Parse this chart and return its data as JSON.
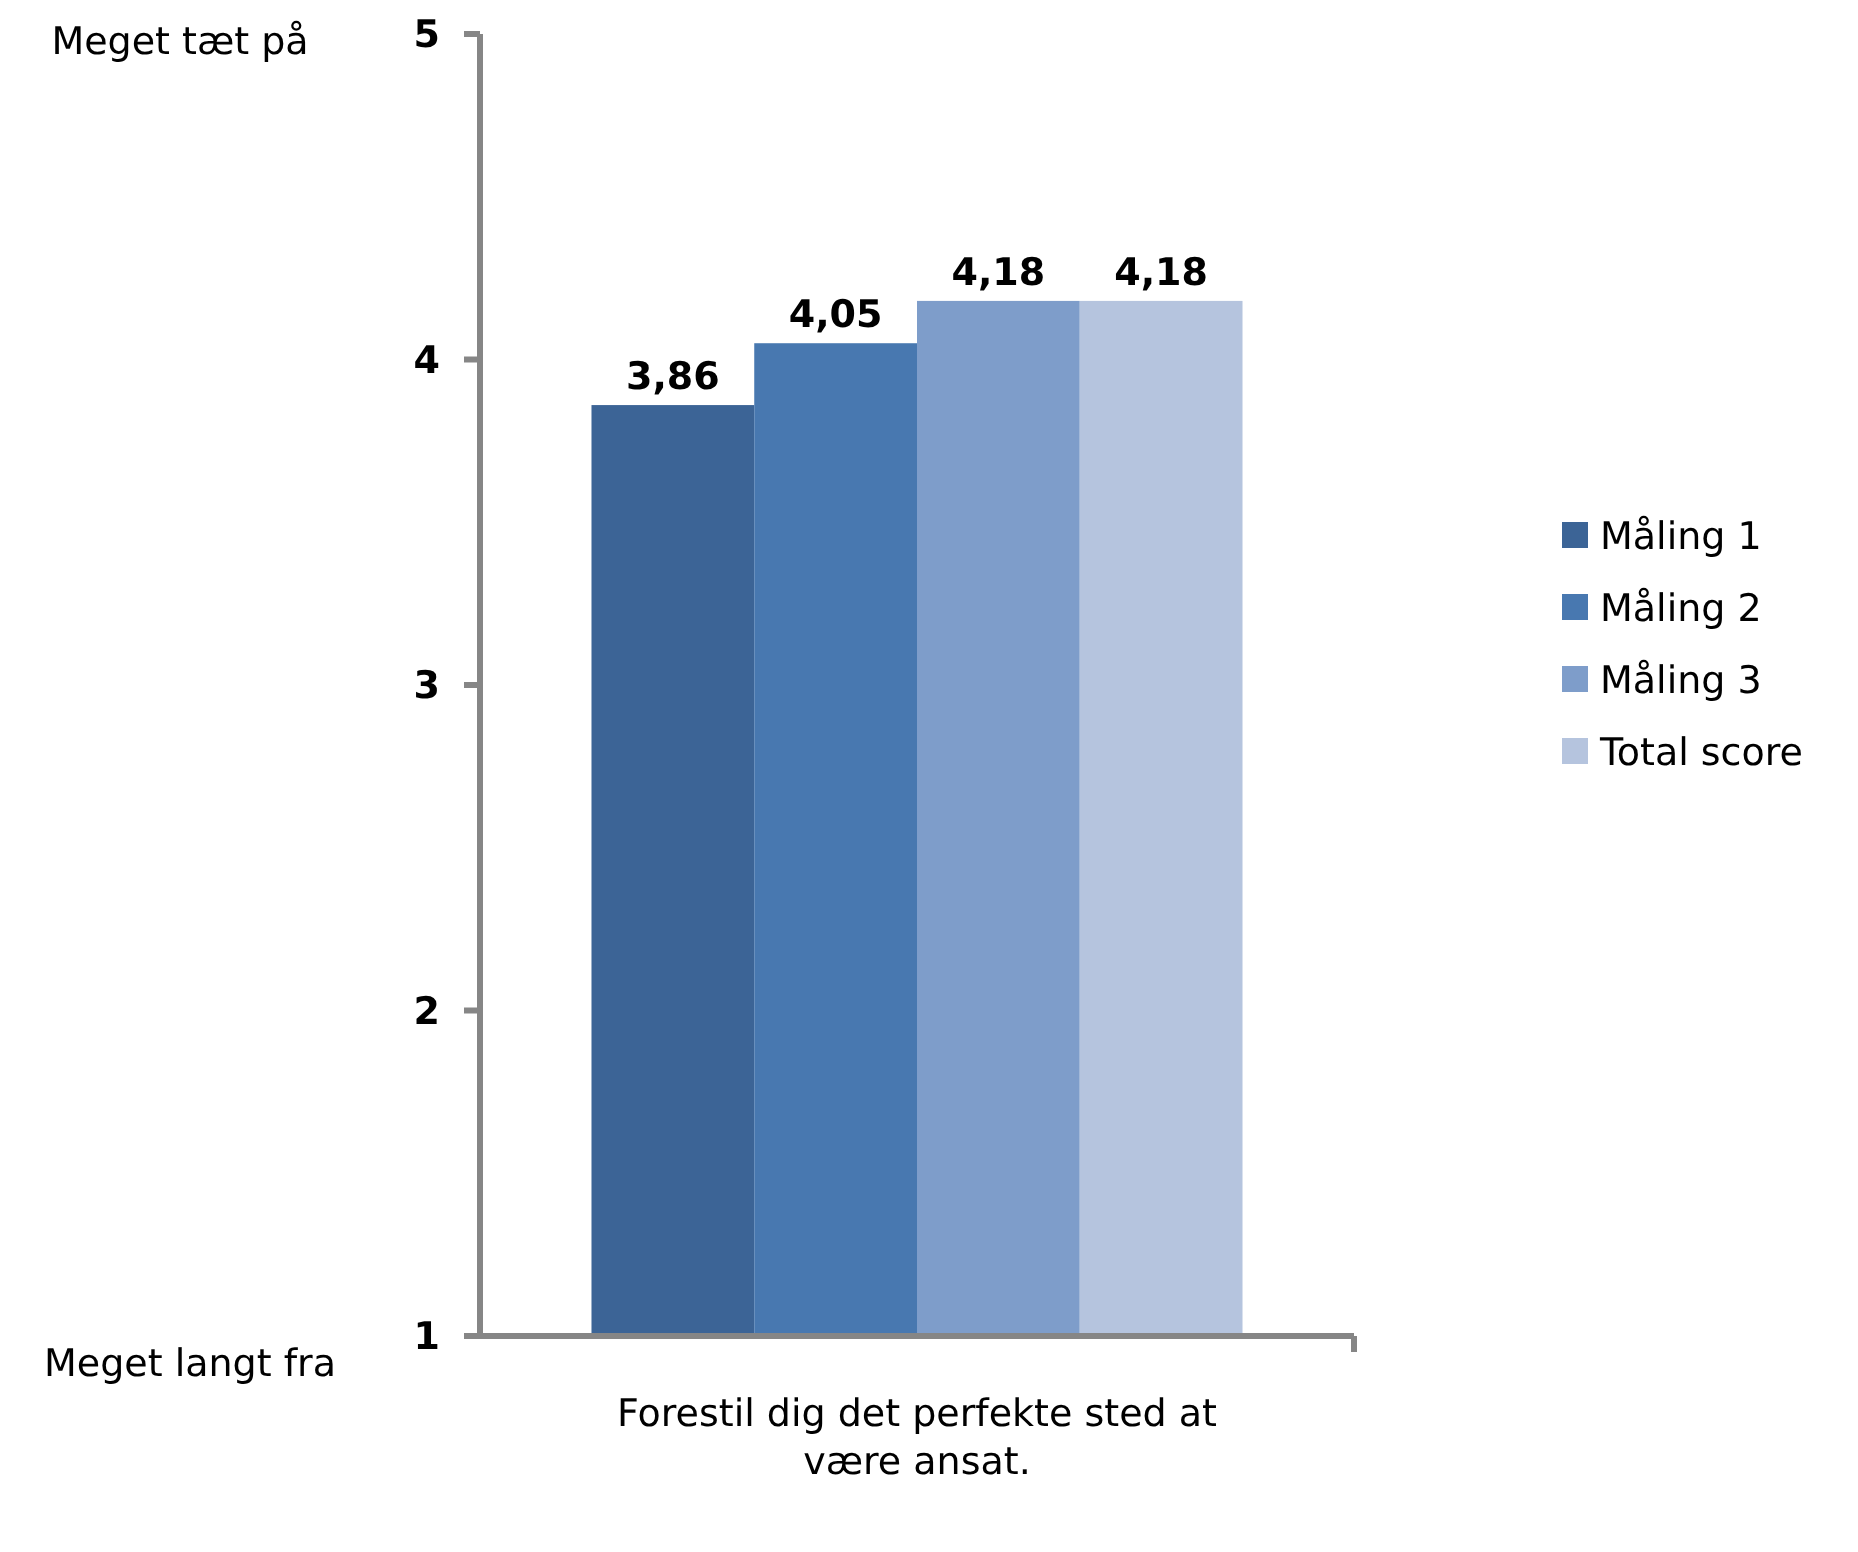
{
  "chart_data": {
    "type": "bar",
    "categories": [
      "Forestil dig det perfekte sted at være ansat."
    ],
    "series": [
      {
        "name": "Måling 1",
        "color": "#3c6496",
        "values": [
          3.86
        ],
        "value_labels": [
          "3,86"
        ]
      },
      {
        "name": "Måling 2",
        "color": "#4878b0",
        "values": [
          4.05
        ],
        "value_labels": [
          "4,05"
        ]
      },
      {
        "name": "Måling 3",
        "color": "#7e9dca",
        "values": [
          4.18
        ],
        "value_labels": [
          "4,18"
        ]
      },
      {
        "name": "Total score",
        "color": "#b5c4de",
        "values": [
          4.18
        ],
        "value_labels": [
          "4,18"
        ]
      }
    ],
    "ylim": [
      1,
      5
    ],
    "yticks": [
      1,
      2,
      3,
      4,
      5
    ],
    "grid": false,
    "legend": "right",
    "annotations": [
      "Meget tæt på",
      "Meget langt fra"
    ]
  }
}
